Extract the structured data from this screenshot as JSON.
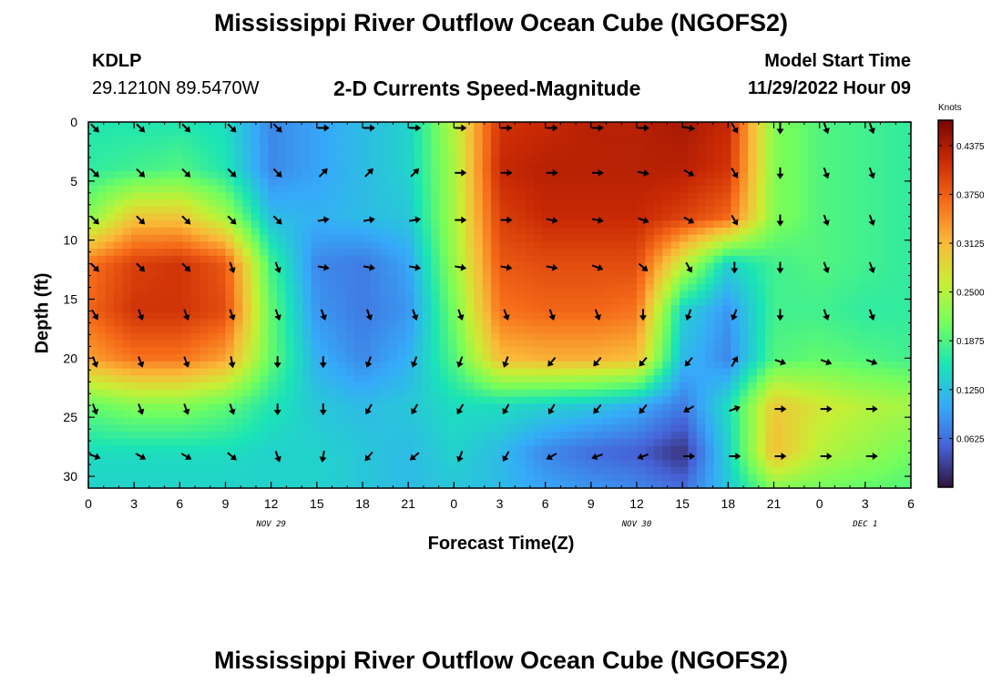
{
  "page": {
    "title": "Mississippi River Outflow Ocean Cube (NGOFS2)",
    "title_repeat": "Mississippi River Outflow Ocean Cube (NGOFS2)"
  },
  "header": {
    "station": "KDLP",
    "coordinates": "29.1210N  89.5470W",
    "subtitle": "2-D Currents Speed-Magnitude",
    "model_start_label": "Model Start Time",
    "model_start_value": "11/29/2022 Hour 09"
  },
  "chart_data": {
    "type": "heatmap",
    "xlabel": "Forecast Time(Z)",
    "ylabel": "Depth (ft)",
    "x_tick_labels": [
      "0",
      "3",
      "6",
      "9",
      "12",
      "15",
      "18",
      "21",
      "0",
      "3",
      "6",
      "9",
      "12",
      "15",
      "18",
      "21",
      "0",
      "3",
      "6"
    ],
    "x_hours": [
      0,
      3,
      6,
      9,
      12,
      15,
      18,
      21,
      24,
      27,
      30,
      33,
      36,
      39,
      42,
      45,
      48,
      51,
      54
    ],
    "date_labels": [
      {
        "text": "NOV 29",
        "hour": 12
      },
      {
        "text": "NOV 30",
        "hour": 36
      },
      {
        "text": "DEC 1",
        "hour": 51
      }
    ],
    "xlim": [
      0,
      54
    ],
    "y_tick_labels": [
      "0",
      "5",
      "10",
      "15",
      "20",
      "25",
      "30"
    ],
    "y_ticks": [
      0,
      5,
      10,
      15,
      20,
      25,
      30
    ],
    "ylim": [
      0,
      31
    ],
    "y_inverted": true,
    "colorbar": {
      "unit_label": "Knots",
      "tick_labels": [
        "0.4375",
        "0.3750",
        "0.3125",
        "0.2500",
        "0.1875",
        "0.1250",
        "0.0625"
      ],
      "tick_values": [
        0.4375,
        0.375,
        0.3125,
        0.25,
        0.1875,
        0.125,
        0.0625
      ],
      "range": [
        0,
        0.47
      ],
      "colors": [
        "#30123b",
        "#4662d7",
        "#36aaf9",
        "#1ae4b6",
        "#72fe5e",
        "#c8ef34",
        "#faba39",
        "#f66b19",
        "#ca2a04",
        "#7a0403"
      ]
    },
    "depths": [
      0.5,
      4.3,
      8.3,
      12.3,
      16.3,
      20.3,
      24.3,
      28.3
    ],
    "speed_grid": {
      "hours": [
        0,
        3,
        6,
        9,
        12,
        15,
        18,
        21,
        24,
        27,
        30,
        33,
        36,
        39,
        42,
        45,
        48,
        51,
        54
      ],
      "depths": [
        0,
        4,
        8,
        12,
        16,
        20,
        24,
        28,
        31
      ],
      "values": [
        [
          0.16,
          0.16,
          0.16,
          0.15,
          0.08,
          0.1,
          0.12,
          0.14,
          0.25,
          0.41,
          0.42,
          0.43,
          0.43,
          0.44,
          0.42,
          0.22,
          0.19,
          0.18,
          0.17
        ],
        [
          0.17,
          0.18,
          0.19,
          0.16,
          0.08,
          0.1,
          0.12,
          0.14,
          0.24,
          0.42,
          0.43,
          0.43,
          0.43,
          0.43,
          0.41,
          0.22,
          0.19,
          0.18,
          0.17
        ],
        [
          0.22,
          0.3,
          0.3,
          0.24,
          0.12,
          0.11,
          0.12,
          0.13,
          0.24,
          0.4,
          0.42,
          0.42,
          0.42,
          0.4,
          0.37,
          0.22,
          0.19,
          0.18,
          0.17
        ],
        [
          0.36,
          0.4,
          0.41,
          0.38,
          0.18,
          0.08,
          0.07,
          0.1,
          0.23,
          0.38,
          0.39,
          0.39,
          0.39,
          0.26,
          0.14,
          0.18,
          0.19,
          0.18,
          0.17
        ],
        [
          0.37,
          0.41,
          0.41,
          0.39,
          0.2,
          0.09,
          0.07,
          0.09,
          0.21,
          0.36,
          0.37,
          0.37,
          0.36,
          0.14,
          0.09,
          0.18,
          0.18,
          0.17,
          0.17
        ],
        [
          0.33,
          0.36,
          0.36,
          0.33,
          0.2,
          0.11,
          0.08,
          0.11,
          0.19,
          0.31,
          0.32,
          0.32,
          0.31,
          0.12,
          0.08,
          0.19,
          0.2,
          0.19,
          0.18
        ],
        [
          0.2,
          0.22,
          0.22,
          0.2,
          0.16,
          0.13,
          0.12,
          0.13,
          0.15,
          0.15,
          0.14,
          0.13,
          0.11,
          0.07,
          0.15,
          0.3,
          0.27,
          0.25,
          0.24
        ],
        [
          0.15,
          0.15,
          0.15,
          0.15,
          0.14,
          0.14,
          0.13,
          0.12,
          0.14,
          0.12,
          0.08,
          0.06,
          0.05,
          0.02,
          0.14,
          0.31,
          0.25,
          0.23,
          0.21
        ],
        [
          0.14,
          0.14,
          0.14,
          0.14,
          0.14,
          0.14,
          0.13,
          0.12,
          0.13,
          0.12,
          0.1,
          0.09,
          0.08,
          0.06,
          0.13,
          0.22,
          0.21,
          0.2,
          0.19
        ]
      ]
    },
    "vectors": {
      "hours": [
        0,
        3,
        6,
        9,
        12,
        15,
        18,
        21,
        24,
        27,
        30,
        33,
        36,
        39,
        42,
        45,
        48,
        51
      ],
      "directions_deg": [
        [
          135,
          135,
          135,
          135,
          135,
          90,
          90,
          90,
          90,
          90,
          90,
          90,
          90,
          100,
          150,
          180,
          160,
          160
        ],
        [
          135,
          135,
          135,
          135,
          135,
          45,
          45,
          45,
          90,
          90,
          90,
          90,
          100,
          120,
          150,
          180,
          160,
          160
        ],
        [
          135,
          135,
          135,
          135,
          135,
          80,
          80,
          80,
          90,
          90,
          100,
          100,
          110,
          120,
          150,
          180,
          160,
          160
        ],
        [
          135,
          135,
          135,
          160,
          160,
          100,
          100,
          100,
          100,
          100,
          100,
          110,
          130,
          150,
          180,
          180,
          160,
          160
        ],
        [
          150,
          160,
          160,
          160,
          160,
          160,
          160,
          160,
          160,
          160,
          160,
          160,
          180,
          200,
          200,
          180,
          160,
          160
        ],
        [
          160,
          160,
          160,
          170,
          180,
          180,
          200,
          200,
          200,
          200,
          220,
          220,
          220,
          220,
          30,
          110,
          110,
          110
        ],
        [
          160,
          160,
          160,
          160,
          180,
          180,
          210,
          210,
          210,
          210,
          210,
          220,
          220,
          240,
          70,
          90,
          90,
          90
        ],
        [
          110,
          120,
          120,
          130,
          160,
          190,
          220,
          230,
          200,
          210,
          240,
          250,
          250,
          90,
          90,
          90,
          90,
          90
        ]
      ]
    }
  }
}
